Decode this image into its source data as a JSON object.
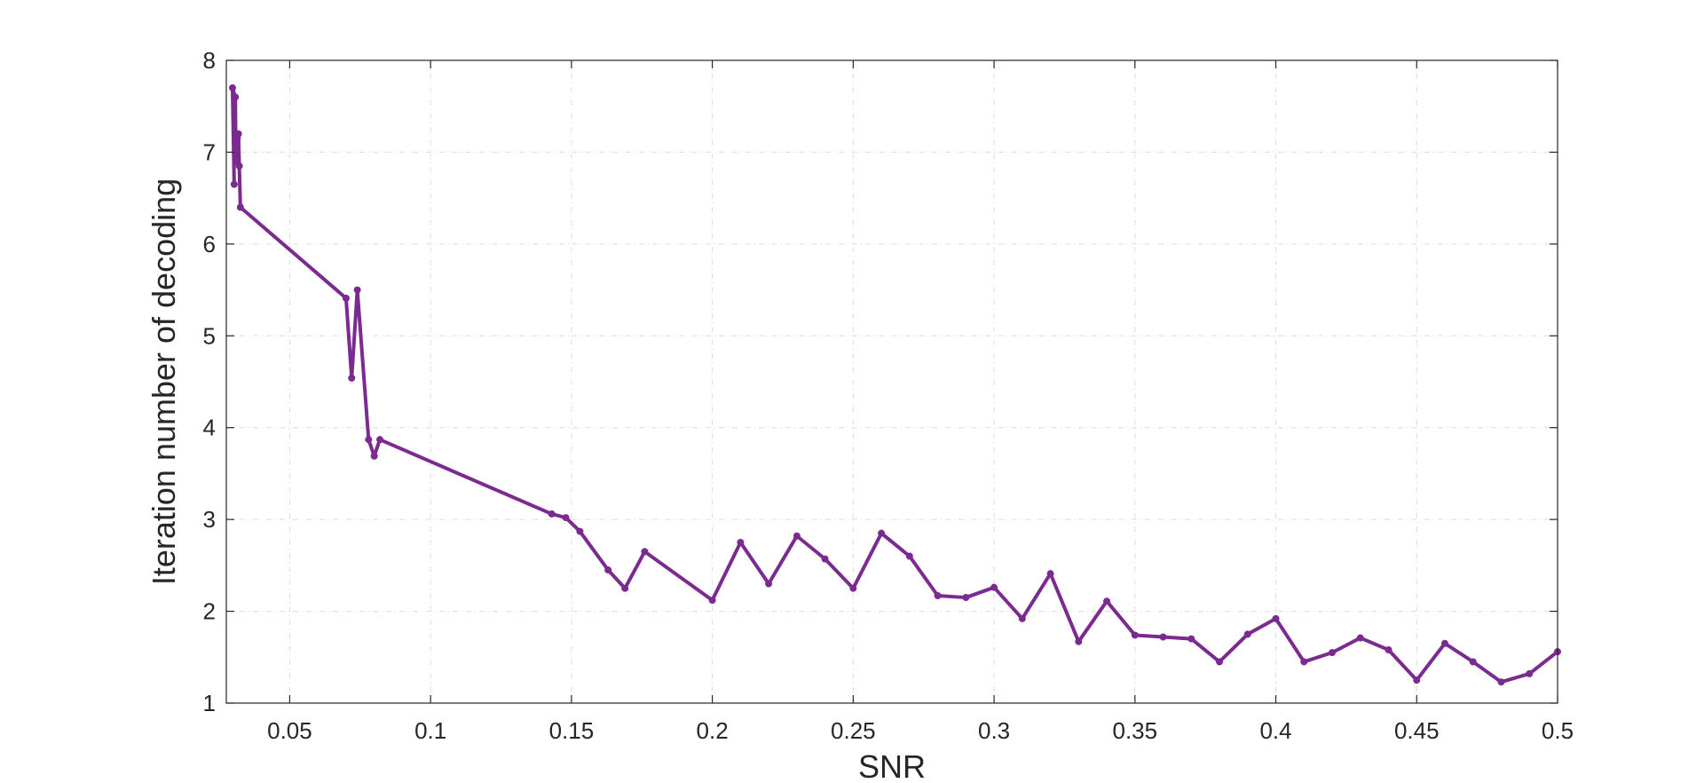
{
  "chart_data": {
    "type": "line",
    "title": "",
    "xlabel": "SNR",
    "ylabel": "Iteration number of decoding",
    "xlim": [
      0.0275,
      0.5
    ],
    "ylim": [
      1,
      8
    ],
    "grid": true,
    "legend": "none",
    "colors": {
      "line": "#7B2A90",
      "axes": "#262626",
      "grid": "#dcdcdc"
    },
    "x_ticks": [
      0.05,
      0.1,
      0.15,
      0.2,
      0.25,
      0.3,
      0.35,
      0.4,
      0.45,
      0.5
    ],
    "x_tick_labels": [
      "0.05",
      "0.1",
      "0.15",
      "0.2",
      "0.25",
      "0.3",
      "0.35",
      "0.4",
      "0.45",
      "0.5"
    ],
    "y_ticks": [
      1,
      2,
      3,
      4,
      5,
      6,
      7,
      8
    ],
    "y_tick_labels": [
      "1",
      "2",
      "3",
      "4",
      "5",
      "6",
      "7",
      "8"
    ],
    "series": [
      {
        "x": [
          0.0303,
          0.0297,
          0.0307,
          0.0309,
          0.0314,
          0.0318,
          0.0321,
          0.0325,
          0.07,
          0.072,
          0.074,
          0.078,
          0.08,
          0.082,
          0.143,
          0.148,
          0.153,
          0.163,
          0.169,
          0.176,
          0.2,
          0.21,
          0.22,
          0.23,
          0.24,
          0.25,
          0.26,
          0.27,
          0.28,
          0.29,
          0.3,
          0.31,
          0.32,
          0.33,
          0.34,
          0.35,
          0.36,
          0.37,
          0.38,
          0.39,
          0.4,
          0.41,
          0.42,
          0.43,
          0.44,
          0.45,
          0.46,
          0.47,
          0.48,
          0.49,
          0.5
        ],
        "y": [
          6.65,
          7.7,
          7.6,
          6.9,
          7.15,
          7.2,
          6.85,
          6.4,
          5.41,
          4.54,
          5.5,
          3.87,
          3.69,
          3.87,
          3.06,
          3.02,
          2.87,
          2.45,
          2.25,
          2.65,
          2.12,
          2.75,
          2.3,
          2.82,
          2.57,
          2.25,
          2.85,
          2.6,
          2.17,
          2.15,
          2.26,
          1.92,
          2.41,
          1.67,
          2.11,
          1.74,
          1.72,
          1.7,
          1.45,
          1.75,
          1.92,
          1.45,
          1.55,
          1.71,
          1.58,
          1.25,
          1.65,
          1.45,
          1.23,
          1.32,
          1.56
        ]
      }
    ]
  }
}
